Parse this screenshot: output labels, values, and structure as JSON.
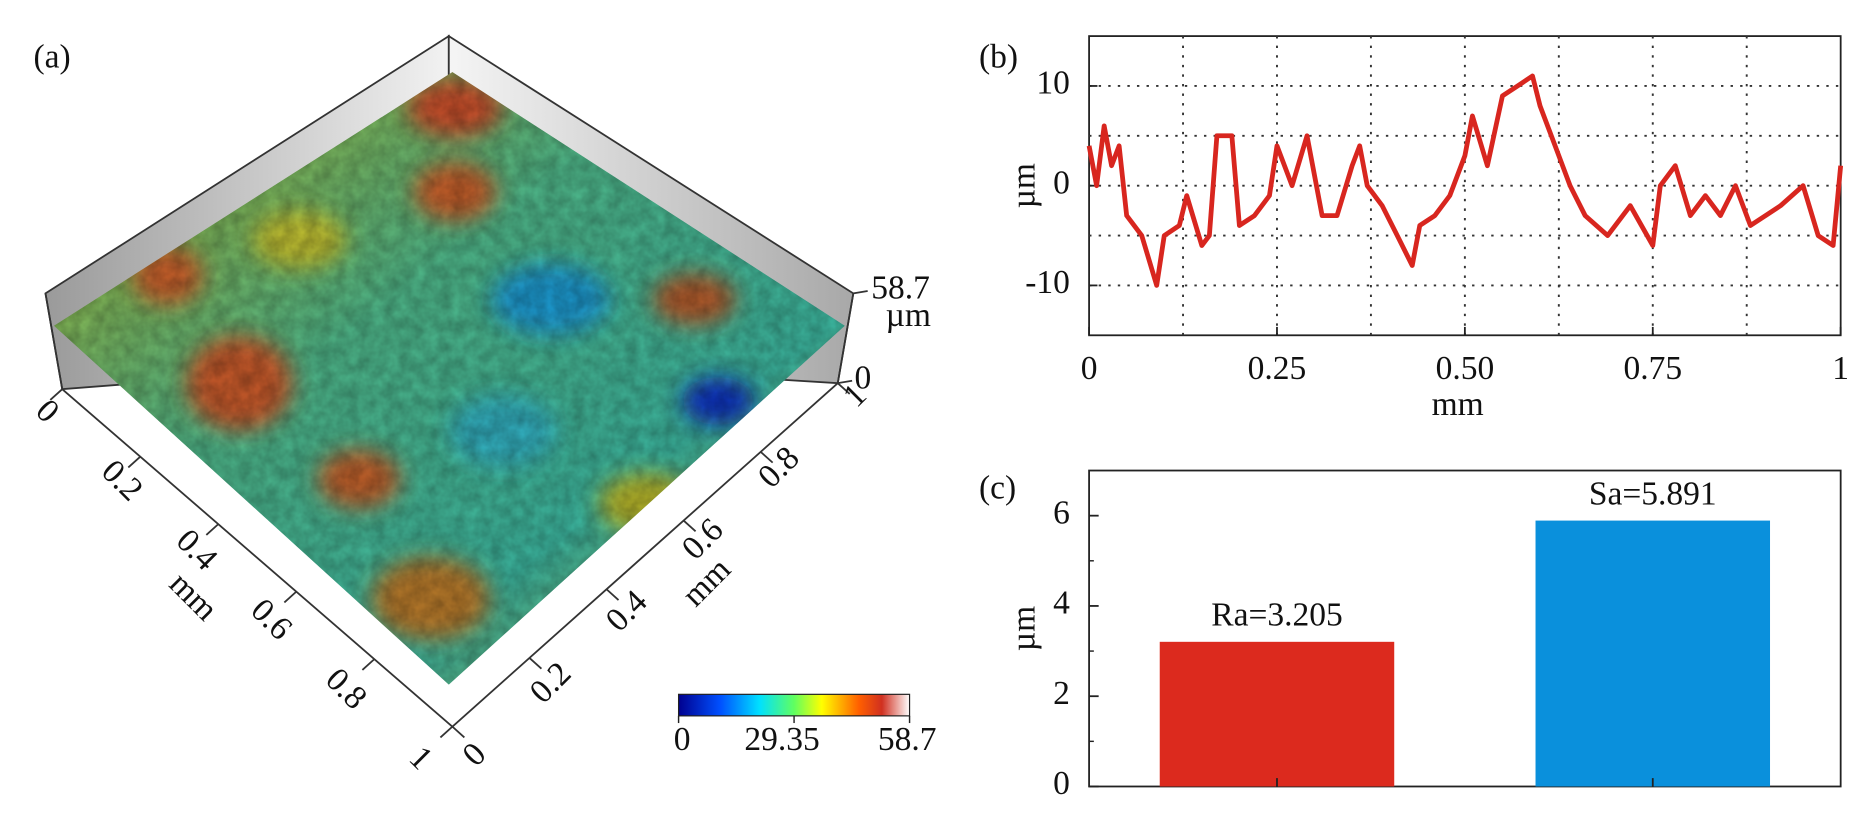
{
  "chart_data": [
    {
      "type": "surface",
      "panel_label": "(a)",
      "x_label": "mm",
      "y_label": "mm",
      "z_label": "µm",
      "xticks": [
        0,
        0.2,
        0.4,
        0.6,
        0.8,
        1
      ],
      "yticks": [
        0,
        0.2,
        0.4,
        0.6,
        0.8,
        1
      ],
      "xlim": [
        0,
        1
      ],
      "ylim": [
        0,
        1
      ],
      "zlim": [
        0,
        58.7
      ],
      "zticks": [
        0,
        58.7
      ],
      "colorbar_ticks": [
        0,
        29.35,
        58.7
      ]
    },
    {
      "type": "line",
      "panel_label": "(b)",
      "x_label": "mm",
      "y_label": "µm",
      "xlim": [
        0,
        1
      ],
      "ylim": [
        -15,
        15
      ],
      "xticks": [
        0,
        0.25,
        {
          "value": 0.5,
          "label": "0.50"
        },
        0.75,
        1
      ],
      "yticks": [
        -10,
        0,
        10
      ],
      "xminor": [
        0.125,
        0.375,
        0.625,
        0.875
      ],
      "yminor": [
        -5,
        5
      ],
      "grid": true,
      "series": [
        {
          "color": "#d8261f",
          "x": [
            0,
            0.01,
            0.02,
            0.03,
            0.04,
            0.05,
            0.07,
            0.09,
            0.1,
            0.12,
            0.13,
            0.15,
            0.16,
            0.17,
            0.19,
            0.2,
            0.22,
            0.24,
            0.25,
            0.27,
            0.29,
            0.31,
            0.33,
            0.35,
            0.36,
            0.37,
            0.39,
            0.41,
            0.43,
            0.44,
            0.46,
            0.48,
            0.5,
            0.51,
            0.53,
            0.55,
            0.57,
            0.59,
            0.6,
            0.62,
            0.64,
            0.66,
            0.69,
            0.72,
            0.75,
            0.76,
            0.78,
            0.8,
            0.82,
            0.84,
            0.86,
            0.88,
            0.9,
            0.92,
            0.95,
            0.97,
            0.99,
            1
          ],
          "values": [
            4,
            0,
            6,
            2,
            4,
            -3,
            -5,
            -10,
            -5,
            -4,
            -1,
            -6,
            -5,
            5,
            5,
            -4,
            -3,
            -1,
            4,
            0,
            5,
            -3,
            -3,
            2,
            4,
            0,
            -2,
            -5,
            -8,
            -4,
            -3,
            -1,
            3,
            7,
            2,
            9,
            10,
            11,
            8,
            4,
            0,
            -3,
            -5,
            -2,
            -6,
            0,
            2,
            -3,
            -1,
            -3,
            0,
            -4,
            -3,
            -2,
            0,
            -5,
            -6,
            2
          ]
        }
      ]
    },
    {
      "type": "bar",
      "panel_label": "(c)",
      "y_label": "µm",
      "categories": [
        null,
        null
      ],
      "values": [
        3.205,
        5.891
      ],
      "value_labels": [
        "Ra=3.205",
        "Sa=5.891"
      ],
      "colors": [
        "#dc2a1e",
        "#0a90dc"
      ],
      "ylim": [
        0,
        7
      ],
      "yticks": [
        0,
        2,
        4,
        6
      ],
      "yminor": [
        1,
        3,
        5
      ]
    }
  ]
}
